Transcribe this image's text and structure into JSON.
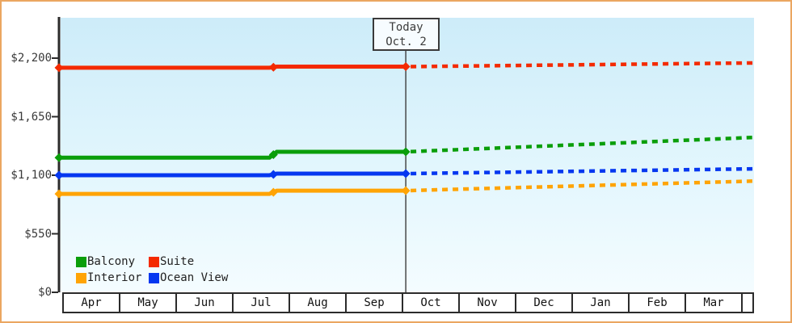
{
  "frame": {
    "border_color": "#eba661"
  },
  "today_marker": {
    "title": "Today",
    "date": "Oct. 2"
  },
  "legend": {
    "items": [
      {
        "label": "Balcony",
        "color": "#0a9e0a"
      },
      {
        "label": "Suite",
        "color": "#f42a00"
      },
      {
        "label": "Interior",
        "color": "#ffa405"
      },
      {
        "label": "Ocean View",
        "color": "#0537f0"
      }
    ]
  },
  "chart_data": {
    "type": "line",
    "title": "",
    "xlabel": "",
    "ylabel": "",
    "x_categories": [
      "Apr",
      "May",
      "Jun",
      "Jul",
      "Aug",
      "Sep",
      "Oct",
      "Nov",
      "Dec",
      "Jan",
      "Feb",
      "Mar"
    ],
    "y_ticks": [
      {
        "value": 0,
        "label": "$0"
      },
      {
        "value": 550,
        "label": "$550"
      },
      {
        "value": 1100,
        "label": "$1,100"
      },
      {
        "value": 1650,
        "label": "$1,650"
      },
      {
        "value": 2200,
        "label": "$2,200"
      }
    ],
    "ylim": [
      0,
      2200
    ],
    "grid": false,
    "legend_position": "bottom-left",
    "background": "vertical gradient light blue to near-white",
    "today": {
      "month_fraction": 6.13,
      "title": "Today",
      "date": "Oct. 2"
    },
    "note": "x values are months since chart start (Apr). Solid = history, dashed = forecast after Today (Oct. 2). Prices stepped up in late Jul.",
    "series": [
      {
        "name": "Suite",
        "color": "#f42a00",
        "solid": [
          [
            0,
            2110
          ],
          [
            3.72,
            2110
          ],
          [
            3.85,
            2120
          ],
          [
            6.13,
            2120
          ]
        ],
        "dashed": [
          [
            6.13,
            2120
          ],
          [
            12.27,
            2155
          ]
        ],
        "markers": [
          [
            0,
            2110
          ],
          [
            3.79,
            2115
          ],
          [
            6.13,
            2120
          ]
        ]
      },
      {
        "name": "Balcony",
        "color": "#0a9e0a",
        "solid": [
          [
            0,
            1265
          ],
          [
            3.72,
            1265
          ],
          [
            3.85,
            1320
          ],
          [
            6.13,
            1320
          ]
        ],
        "dashed": [
          [
            6.13,
            1320
          ],
          [
            12.27,
            1455
          ]
        ],
        "markers": [
          [
            0,
            1265
          ],
          [
            3.79,
            1293
          ],
          [
            6.13,
            1320
          ]
        ]
      },
      {
        "name": "Ocean View",
        "color": "#0537f0",
        "solid": [
          [
            0,
            1100
          ],
          [
            3.72,
            1100
          ],
          [
            3.85,
            1115
          ],
          [
            6.13,
            1115
          ]
        ],
        "dashed": [
          [
            6.13,
            1115
          ],
          [
            12.27,
            1160
          ]
        ],
        "markers": [
          [
            0,
            1100
          ],
          [
            3.79,
            1108
          ],
          [
            6.13,
            1115
          ]
        ]
      },
      {
        "name": "Interior",
        "color": "#ffa405",
        "solid": [
          [
            0,
            925
          ],
          [
            3.72,
            925
          ],
          [
            3.85,
            955
          ],
          [
            6.13,
            955
          ]
        ],
        "dashed": [
          [
            6.13,
            955
          ],
          [
            12.27,
            1045
          ]
        ],
        "markers": [
          [
            0,
            925
          ],
          [
            3.79,
            940
          ],
          [
            6.13,
            955
          ]
        ]
      }
    ]
  }
}
